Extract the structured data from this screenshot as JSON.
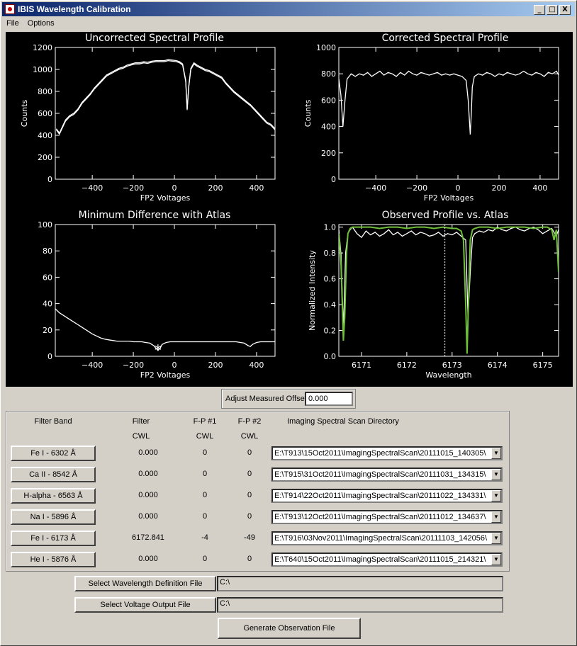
{
  "window": {
    "title": "IBIS Wavelength Calibration",
    "controls": [
      "_",
      "□",
      "X"
    ]
  },
  "menu": [
    "File",
    "Options"
  ],
  "plots": [
    {
      "id": "uncorrected",
      "title": "Uncorrected Spectral Profile",
      "xlabel": "FP2 Voltages",
      "ylabel": "Counts",
      "xlim": [
        -580,
        490
      ],
      "ylim": [
        0,
        1200
      ],
      "xticks": [
        -400,
        -200,
        0,
        200,
        400
      ],
      "yticks": [
        0,
        200,
        400,
        600,
        800,
        1000,
        1200
      ],
      "series": [
        {
          "x": [
            -575,
            -560,
            -545,
            -530,
            -510,
            -490,
            -470,
            -450,
            -430,
            -410,
            -390,
            -370,
            -350,
            -330,
            -310,
            -290,
            -270,
            -250,
            -230,
            -210,
            -190,
            -170,
            -150,
            -130,
            -110,
            -90,
            -70,
            -50,
            -30,
            -10,
            10,
            25,
            40,
            55,
            62,
            70,
            80,
            95,
            110,
            130,
            150,
            170,
            190,
            210,
            230,
            250,
            270,
            290,
            310,
            330,
            350,
            370,
            390,
            410,
            430,
            450,
            470,
            490
          ],
          "y": [
            460,
            420,
            480,
            540,
            580,
            600,
            640,
            700,
            740,
            780,
            830,
            870,
            910,
            950,
            970,
            990,
            1010,
            1020,
            1040,
            1050,
            1060,
            1060,
            1070,
            1065,
            1075,
            1080,
            1080,
            1080,
            1090,
            1085,
            1080,
            1070,
            1050,
            900,
            640,
            850,
            1010,
            1060,
            1040,
            1020,
            1000,
            990,
            970,
            950,
            930,
            880,
            840,
            800,
            770,
            740,
            710,
            680,
            640,
            600,
            560,
            520,
            500,
            460
          ]
        },
        {
          "x": [
            -575,
            -560,
            -545,
            -530,
            -510,
            -490,
            -470,
            -450,
            -430,
            -410,
            -390,
            -370,
            -350,
            -330,
            -310,
            -290,
            -270,
            -250,
            -230,
            -210,
            -190,
            -170,
            -150,
            -130,
            -110,
            -90,
            -70,
            -50,
            -30,
            -10,
            10,
            25,
            40,
            55,
            62,
            70,
            80,
            95,
            110,
            130,
            150,
            170,
            190,
            210,
            230,
            250,
            270,
            290,
            310,
            330,
            350,
            370,
            390,
            410,
            430,
            450,
            470,
            490
          ],
          "y": [
            450,
            410,
            470,
            530,
            570,
            590,
            630,
            690,
            730,
            770,
            820,
            860,
            900,
            940,
            960,
            980,
            1000,
            1010,
            1030,
            1040,
            1050,
            1050,
            1060,
            1055,
            1065,
            1070,
            1070,
            1070,
            1080,
            1075,
            1070,
            1060,
            1040,
            890,
            630,
            840,
            1000,
            1050,
            1030,
            1010,
            990,
            980,
            960,
            940,
            920,
            870,
            830,
            790,
            760,
            730,
            700,
            670,
            630,
            590,
            550,
            510,
            490,
            450
          ]
        }
      ]
    },
    {
      "id": "corrected",
      "title": "Corrected Spectral Profile",
      "xlabel": "FP2 Voltages",
      "ylabel": "Counts",
      "xlim": [
        -580,
        490
      ],
      "ylim": [
        0,
        1000
      ],
      "xticks": [
        -400,
        -200,
        0,
        200,
        400
      ],
      "yticks": [
        0,
        200,
        400,
        600,
        800,
        1000
      ],
      "series": [
        {
          "x": [
            -580,
            -570,
            -560,
            -550,
            -540,
            -520,
            -500,
            -480,
            -460,
            -440,
            -420,
            -400,
            -380,
            -360,
            -340,
            -320,
            -300,
            -280,
            -260,
            -240,
            -220,
            -200,
            -180,
            -160,
            -140,
            -120,
            -100,
            -80,
            -60,
            -40,
            -20,
            0,
            20,
            40,
            50,
            60,
            65,
            70,
            80,
            100,
            120,
            140,
            160,
            180,
            200,
            220,
            240,
            260,
            280,
            300,
            320,
            340,
            360,
            380,
            400,
            420,
            440,
            460,
            480,
            490
          ],
          "y": [
            760,
            640,
            400,
            600,
            760,
            800,
            780,
            800,
            790,
            810,
            780,
            800,
            820,
            790,
            810,
            800,
            780,
            810,
            790,
            820,
            800,
            790,
            810,
            800,
            790,
            800,
            810,
            790,
            800,
            790,
            800,
            790,
            780,
            750,
            600,
            340,
            500,
            700,
            780,
            800,
            790,
            810,
            800,
            780,
            800,
            790,
            810,
            800,
            790,
            800,
            820,
            800,
            790,
            810,
            800,
            780,
            810,
            800,
            820,
            790
          ]
        }
      ]
    },
    {
      "id": "min-diff",
      "title": "Minimum Difference with Atlas",
      "xlabel": "FP2 Voltages",
      "ylabel": "",
      "xlim": [
        -580,
        490
      ],
      "ylim": [
        0,
        100
      ],
      "xticks": [
        -400,
        -200,
        0,
        200,
        400
      ],
      "yticks": [
        0,
        20,
        40,
        60,
        80,
        100
      ],
      "series": [
        {
          "x": [
            -580,
            -560,
            -540,
            -520,
            -500,
            -480,
            -460,
            -440,
            -420,
            -400,
            -380,
            -360,
            -340,
            -320,
            -300,
            -280,
            -260,
            -240,
            -220,
            -200,
            -180,
            -160,
            -140,
            -120,
            -100,
            -90,
            -80,
            -70,
            -60,
            -40,
            -20,
            0,
            20,
            40,
            60,
            80,
            100,
            150,
            200,
            250,
            300,
            340,
            360,
            370,
            380,
            400,
            420,
            440,
            460,
            480,
            490
          ],
          "y": [
            36,
            33,
            31,
            29,
            27,
            25,
            23,
            21,
            19,
            17,
            15.5,
            14,
            13,
            12.5,
            12,
            11.5,
            11.5,
            11.5,
            11.5,
            11,
            11,
            11,
            10.5,
            10,
            8,
            6,
            4.5,
            6,
            9,
            10.5,
            11,
            11,
            11,
            11,
            11,
            11,
            11,
            11,
            11,
            11,
            11,
            10,
            8,
            7.5,
            9,
            10.5,
            11,
            11,
            11,
            11,
            11
          ]
        }
      ],
      "marker": {
        "x": -80,
        "y": 4.5,
        "symbol": "*"
      }
    },
    {
      "id": "observed-vs-atlas",
      "title": "Observed Profile vs. Atlas",
      "xlabel": "Wavelength",
      "ylabel": "Normalized Intensity",
      "xlim": [
        6170.5,
        6175.35
      ],
      "ylim": [
        0,
        1.02
      ],
      "xticks": [
        6171,
        6172,
        6173,
        6174,
        6175
      ],
      "yticks": [
        0.0,
        0.2,
        0.4,
        0.6,
        0.8,
        1.0
      ],
      "vline_x": 6172.841,
      "series": [
        {
          "name": "",
          "color": "#ffffff",
          "x": [
            6170.5,
            6170.55,
            6170.6,
            6170.65,
            6170.7,
            6170.75,
            6170.8,
            6170.9,
            6171.0,
            6171.1,
            6171.2,
            6171.3,
            6171.4,
            6171.5,
            6171.6,
            6171.7,
            6171.8,
            6171.9,
            6172.0,
            6172.1,
            6172.2,
            6172.3,
            6172.4,
            6172.5,
            6172.6,
            6172.7,
            6172.8,
            6172.9,
            6173.0,
            6173.1,
            6173.2,
            6173.3,
            6173.35,
            6173.4,
            6173.45,
            6173.5,
            6173.6,
            6173.7,
            6173.8,
            6173.9,
            6174.0,
            6174.1,
            6174.2,
            6174.3,
            6174.4,
            6174.5,
            6174.6,
            6174.7,
            6174.8,
            6174.9,
            6175.0,
            6175.1,
            6175.2,
            6175.3,
            6175.35
          ],
          "y": [
            0.98,
            0.78,
            0.2,
            0.8,
            0.95,
            0.98,
            1.0,
            0.95,
            0.92,
            0.97,
            0.94,
            0.96,
            0.93,
            0.95,
            0.98,
            0.94,
            0.96,
            0.93,
            0.95,
            0.97,
            0.94,
            0.96,
            0.95,
            0.93,
            0.94,
            0.96,
            0.93,
            0.95,
            0.94,
            0.96,
            0.93,
            0.9,
            0.3,
            0.65,
            0.92,
            0.95,
            0.97,
            0.96,
            0.98,
            0.97,
            1.0,
            0.98,
            0.97,
            0.99,
            1.0,
            0.98,
            0.97,
            0.99,
            1.0,
            0.98,
            0.95,
            0.97,
            0.99,
            0.93,
            0.98
          ]
        },
        {
          "name": "",
          "color": "#6fbf3a",
          "x": [
            6170.5,
            6170.55,
            6170.6,
            6170.63,
            6170.67,
            6170.7,
            6170.75,
            6170.8,
            6170.9,
            6171.0,
            6171.2,
            6171.4,
            6171.6,
            6171.8,
            6172.0,
            6172.2,
            6172.4,
            6172.6,
            6172.8,
            6173.0,
            6173.1,
            6173.2,
            6173.25,
            6173.3,
            6173.33,
            6173.36,
            6173.4,
            6173.45,
            6173.5,
            6173.6,
            6173.8,
            6174.0,
            6174.2,
            6174.4,
            6174.6,
            6174.8,
            6175.0,
            6175.1,
            6175.2,
            6175.25,
            6175.3,
            6175.35
          ],
          "y": [
            0.95,
            0.7,
            0.12,
            0.3,
            0.8,
            0.95,
            0.99,
            1.0,
            1.0,
            1.0,
            1.0,
            0.99,
            1.0,
            1.0,
            0.99,
            1.0,
            1.0,
            0.99,
            1.0,
            0.99,
            0.99,
            0.97,
            0.9,
            0.4,
            0.02,
            0.4,
            0.9,
            0.98,
            0.99,
            1.0,
            1.0,
            0.99,
            1.0,
            1.0,
            1.0,
            0.99,
            1.0,
            1.0,
            0.98,
            0.9,
            0.98,
            0.65
          ]
        }
      ]
    }
  ],
  "offset": {
    "label": "Adjust Measured Offset",
    "value": "0.000"
  },
  "table": {
    "headers": {
      "band": "Filter Band",
      "filter_top": "Filter",
      "filter_bottom": "CWL",
      "fp1_top": "F-P #1",
      "fp1_bottom": "CWL",
      "fp2_top": "F-P #2",
      "fp2_bottom": "CWL",
      "dir": "Imaging Spectral Scan Directory"
    },
    "rows": [
      {
        "band": "Fe I - 6302 Å",
        "filter": "0.000",
        "fp1": "0",
        "fp2": "0",
        "dir": "E:\\T913\\15Oct2011\\ImagingSpectralScan\\20111015_140305\\"
      },
      {
        "band": "Ca II - 8542 Å",
        "filter": "0.000",
        "fp1": "0",
        "fp2": "0",
        "dir": "E:\\T915\\31Oct2011\\ImagingSpectralScan\\20111031_134315\\"
      },
      {
        "band": "H-alpha - 6563 Å",
        "filter": "0.000",
        "fp1": "0",
        "fp2": "0",
        "dir": "E:\\T914\\22Oct2011\\ImagingSpectralScan\\20111022_134331\\"
      },
      {
        "band": "Na I - 5896 Å",
        "filter": "0.000",
        "fp1": "0",
        "fp2": "0",
        "dir": "E:\\T913\\12Oct2011\\ImagingSpectralScan\\20111012_134637\\"
      },
      {
        "band": "Fe I - 6173 Å",
        "filter": "6172.841",
        "fp1": "-4",
        "fp2": "-49",
        "dir": "E:\\T916\\03Nov2011\\ImagingSpectralScan\\20111103_142056\\"
      },
      {
        "band": "He I - 5876 Å",
        "filter": "0.000",
        "fp1": "0",
        "fp2": "0",
        "dir": "E:\\T640\\15Oct2011\\ImagingSpectralScan\\20111015_214321\\"
      }
    ]
  },
  "wavelength_def": {
    "button": "Select Wavelength Definition File",
    "path": "C:\\"
  },
  "voltage_out": {
    "button": "Select Voltage Output File",
    "path": "C:\\"
  },
  "generate_button": "Generate Observation File"
}
